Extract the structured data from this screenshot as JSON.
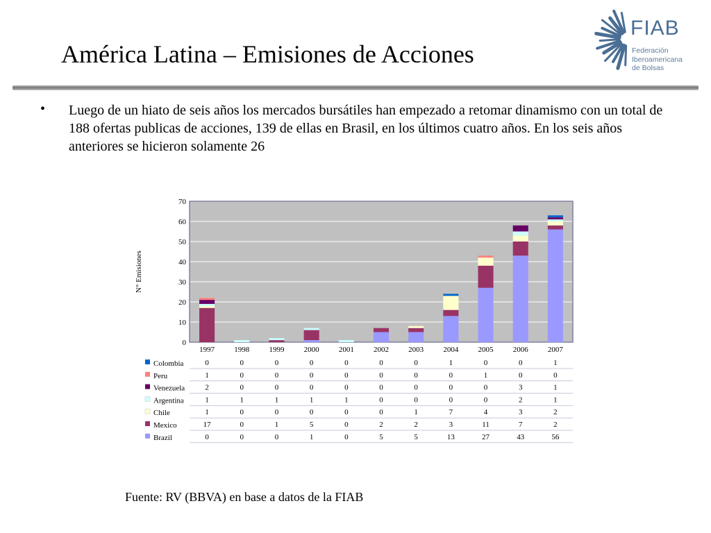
{
  "slide": {
    "title": "América Latina – Emisiones de Acciones",
    "bullet_symbol": "•",
    "bullet_text": "Luego de un hiato de seis años los mercados bursátiles han empezado a retomar dinamismo con un total de 188 ofertas publicas de acciones, 139 de ellas en Brasil, en los últimos cuatro años. En los seis años anteriores se hicieron solamente 26",
    "source": "Fuente: RV (BBVA) en base a datos de la FIAB"
  },
  "logo": {
    "word": "FIAB",
    "subtitle_lines": [
      "Federación",
      "Iberoamericana",
      "de Bolsas"
    ],
    "color": "#4a6e94"
  },
  "chart_data": {
    "type": "bar",
    "stacked": true,
    "title": "",
    "xlabel": "",
    "ylabel": "N° Emisiones",
    "ylim": [
      0,
      70
    ],
    "yticks": [
      0,
      10,
      20,
      30,
      40,
      50,
      60,
      70
    ],
    "grid": true,
    "legend": "table-below",
    "categories": [
      "1997",
      "1998",
      "1999",
      "2000",
      "2001",
      "2002",
      "2003",
      "2004",
      "2005",
      "2006",
      "2007"
    ],
    "series": [
      {
        "name": "Brazil",
        "color": "#9999ff",
        "values": [
          0,
          0,
          0,
          1,
          0,
          5,
          5,
          13,
          27,
          43,
          56
        ]
      },
      {
        "name": "Mexico",
        "color": "#993366",
        "values": [
          17,
          0,
          1,
          5,
          0,
          2,
          2,
          3,
          11,
          7,
          2
        ]
      },
      {
        "name": "Chile",
        "color": "#ffffcc",
        "values": [
          1,
          0,
          0,
          0,
          0,
          0,
          1,
          7,
          4,
          3,
          2
        ]
      },
      {
        "name": "Argentina",
        "color": "#ccffff",
        "values": [
          1,
          1,
          1,
          1,
          1,
          0,
          0,
          0,
          0,
          2,
          1
        ]
      },
      {
        "name": "Venezuela",
        "color": "#660066",
        "values": [
          2,
          0,
          0,
          0,
          0,
          0,
          0,
          0,
          0,
          3,
          1
        ]
      },
      {
        "name": "Peru",
        "color": "#ff8080",
        "values": [
          1,
          0,
          0,
          0,
          0,
          0,
          0,
          0,
          1,
          0,
          0
        ]
      },
      {
        "name": "Colombia",
        "color": "#0066cc",
        "values": [
          0,
          0,
          0,
          0,
          0,
          0,
          0,
          1,
          0,
          0,
          1
        ]
      }
    ],
    "table_order": [
      "Colombia",
      "Peru",
      "Venezuela",
      "Argentina",
      "Chile",
      "Mexico",
      "Brazil"
    ]
  }
}
